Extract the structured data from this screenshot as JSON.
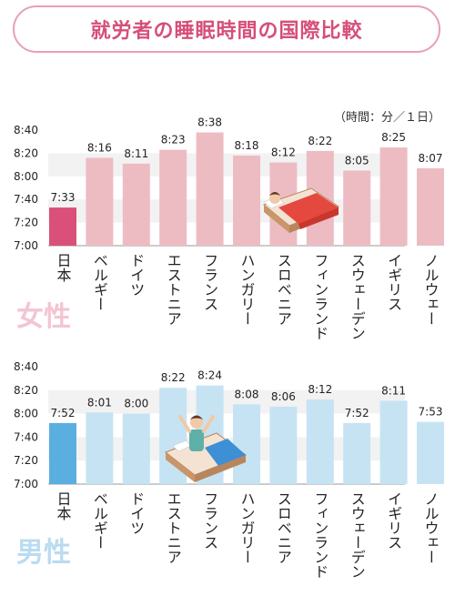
{
  "title": "就労者の睡眠時間の国際比較",
  "unit_note": "（時間：分／１日）",
  "colors": {
    "title_accent": "#d64f79",
    "title_border": "#e7a0b4",
    "female_bar": "#edbcc3",
    "female_highlight": "#d9517a",
    "female_label": "#f3c5d3",
    "female_band": "#f2f2f2",
    "male_bar": "#c6e3f3",
    "male_highlight": "#5aafe0",
    "male_label": "#b9dcf0",
    "male_band": "#f2f2f2"
  },
  "chart_data": [
    {
      "type": "bar",
      "panel_label": "女性",
      "categories": [
        "日本",
        "ベルギー",
        "ドイツ",
        "エストニア",
        "フランス",
        "ハンガリー",
        "スロベニア",
        "フィンランド",
        "スウェーデン",
        "イギリス",
        "ノルウェー"
      ],
      "value_labels": [
        "7:33",
        "8:16",
        "8:11",
        "8:23",
        "8:38",
        "8:18",
        "8:12",
        "8:22",
        "8:05",
        "8:25",
        "8:07"
      ],
      "values_minutes": [
        453,
        496,
        491,
        503,
        518,
        498,
        492,
        502,
        485,
        505,
        487
      ],
      "y_ticks": [
        "8:40",
        "8:20",
        "8:00",
        "7:40",
        "7:20",
        "7:00"
      ],
      "ylim_minutes": [
        420,
        520
      ],
      "highlight": "日本"
    },
    {
      "type": "bar",
      "panel_label": "男性",
      "categories": [
        "日本",
        "ベルギー",
        "ドイツ",
        "エストニア",
        "フランス",
        "ハンガリー",
        "スロベニア",
        "フィンランド",
        "スウェーデン",
        "イギリス",
        "ノルウェー"
      ],
      "value_labels": [
        "7:52",
        "8:01",
        "8:00",
        "8:22",
        "8:24",
        "8:08",
        "8:06",
        "8:12",
        "7:52",
        "8:11",
        "7:53"
      ],
      "values_minutes": [
        472,
        481,
        480,
        502,
        504,
        488,
        486,
        492,
        472,
        491,
        473
      ],
      "y_ticks": [
        "8:40",
        "8:20",
        "8:00",
        "7:40",
        "7:20",
        "7:00"
      ],
      "ylim_minutes": [
        420,
        520
      ],
      "highlight": "日本"
    }
  ]
}
